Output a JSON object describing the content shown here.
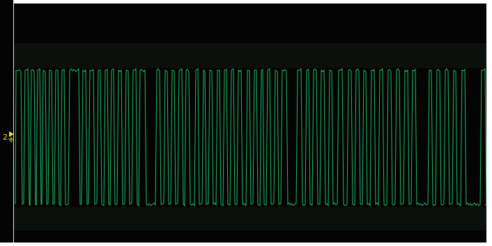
{
  "channel": {
    "label": "2",
    "trace_color": "#1fbf6a",
    "marker_color": "#e6e14a",
    "icon": "ground-level-marker-icon"
  },
  "screen": {
    "background": "#030403"
  }
}
